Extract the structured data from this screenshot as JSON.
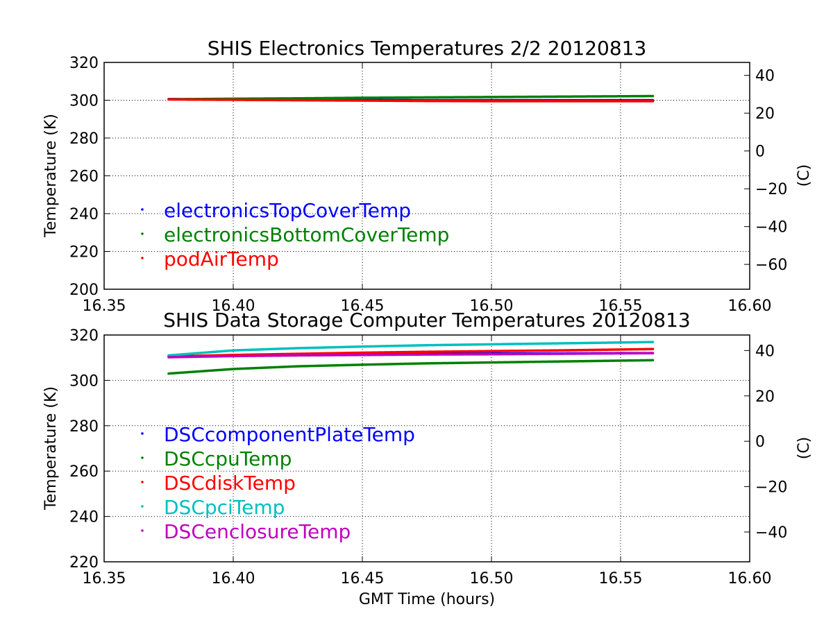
{
  "figure": {
    "xlabel": "GMT Time (hours)"
  },
  "chart_data": [
    {
      "type": "scatter",
      "title": "SHIS Electronics Temperatures 2/2 20120813",
      "xlabel": "",
      "ylabel": "Temperature (K)",
      "ylabel_right": "(C)",
      "xlim": [
        16.35,
        16.6
      ],
      "ylim": [
        200,
        320
      ],
      "ylim_right_celsius": [
        -73.15,
        46.85
      ],
      "x_ticks": [
        16.35,
        16.4,
        16.45,
        16.5,
        16.55,
        16.6
      ],
      "x_tick_labels": [
        "16.35",
        "16.40",
        "16.45",
        "16.50",
        "16.55",
        "16.60"
      ],
      "y_ticks": [
        200,
        220,
        240,
        260,
        280,
        300,
        320
      ],
      "y_tick_labels": [
        "200",
        "220",
        "240",
        "260",
        "280",
        "300",
        "320"
      ],
      "y_right_ticks": [
        -60,
        -40,
        -20,
        0,
        20,
        40
      ],
      "y_right_tick_labels": [
        "−60",
        "−40",
        "−20",
        "0",
        "20",
        "40"
      ],
      "grid": true,
      "legend_position": "lower-left",
      "series": [
        {
          "name": "electronicsTopCoverTemp",
          "color": "#0000ff",
          "x": [
            16.375,
            16.4,
            16.425,
            16.45,
            16.475,
            16.5,
            16.525,
            16.55,
            16.5625
          ],
          "y": [
            300.6,
            300.4,
            300.2,
            300.1,
            300.0,
            300.0,
            300.0,
            300.0,
            300.0
          ]
        },
        {
          "name": "electronicsBottomCoverTemp",
          "color": "#008000",
          "x": [
            16.375,
            16.4,
            16.425,
            16.45,
            16.475,
            16.5,
            16.525,
            16.55,
            16.5625
          ],
          "y": [
            300.5,
            300.8,
            301.0,
            301.3,
            301.5,
            301.7,
            301.9,
            302.1,
            302.2
          ]
        },
        {
          "name": "podAirTemp",
          "color": "#ff0000",
          "x": [
            16.375,
            16.4,
            16.425,
            16.45,
            16.475,
            16.5,
            16.525,
            16.55,
            16.5625
          ],
          "y": [
            300.4,
            300.2,
            300.0,
            299.8,
            299.6,
            299.5,
            299.5,
            299.5,
            299.5
          ]
        }
      ]
    },
    {
      "type": "scatter",
      "title": "SHIS Data Storage Computer Temperatures 20120813",
      "xlabel": "GMT Time (hours)",
      "ylabel": "Temperature (K)",
      "ylabel_right": "(C)",
      "xlim": [
        16.35,
        16.6
      ],
      "ylim": [
        220,
        320
      ],
      "ylim_right_celsius": [
        -53.15,
        46.85
      ],
      "x_ticks": [
        16.35,
        16.4,
        16.45,
        16.5,
        16.55,
        16.6
      ],
      "x_tick_labels": [
        "16.35",
        "16.40",
        "16.45",
        "16.50",
        "16.55",
        "16.60"
      ],
      "y_ticks": [
        220,
        240,
        260,
        280,
        300,
        320
      ],
      "y_tick_labels": [
        "220",
        "240",
        "260",
        "280",
        "300",
        "320"
      ],
      "y_right_ticks": [
        -40,
        -20,
        0,
        20,
        40
      ],
      "y_right_tick_labels": [
        "−40",
        "−20",
        "0",
        "20",
        "40"
      ],
      "grid": true,
      "legend_position": "lower-left",
      "series": [
        {
          "name": "DSCcomponentPlateTemp",
          "color": "#0000ff",
          "x": [
            16.375,
            16.4,
            16.425,
            16.45,
            16.475,
            16.5,
            16.525,
            16.55,
            16.5625
          ],
          "y": [
            310.5,
            311.0,
            311.3,
            311.5,
            311.7,
            311.8,
            311.9,
            312.0,
            312.0
          ]
        },
        {
          "name": "DSCcpuTemp",
          "color": "#008000",
          "x": [
            16.375,
            16.4,
            16.425,
            16.45,
            16.475,
            16.5,
            16.525,
            16.55,
            16.5625
          ],
          "y": [
            303.0,
            305.0,
            306.2,
            306.9,
            307.5,
            307.9,
            308.3,
            308.7,
            308.9
          ]
        },
        {
          "name": "DSCdiskTemp",
          "color": "#ff0000",
          "x": [
            16.375,
            16.4,
            16.425,
            16.45,
            16.475,
            16.5,
            16.525,
            16.55,
            16.5625
          ],
          "y": [
            310.5,
            311.2,
            311.7,
            312.2,
            312.6,
            312.9,
            313.2,
            313.6,
            313.8
          ]
        },
        {
          "name": "DSCpciTemp",
          "color": "#00bfbf",
          "x": [
            16.375,
            16.4,
            16.425,
            16.45,
            16.475,
            16.5,
            16.525,
            16.55,
            16.5625
          ],
          "y": [
            311.0,
            313.2,
            314.2,
            314.9,
            315.5,
            315.9,
            316.3,
            316.7,
            316.9
          ]
        },
        {
          "name": "DSCenclosureTemp",
          "color": "#bf00bf",
          "x": [
            16.375,
            16.4,
            16.425,
            16.45,
            16.475,
            16.5,
            16.525,
            16.55,
            16.5625
          ],
          "y": [
            310.2,
            310.7,
            311.0,
            311.2,
            311.4,
            311.5,
            311.7,
            311.9,
            312.0
          ]
        }
      ]
    }
  ]
}
